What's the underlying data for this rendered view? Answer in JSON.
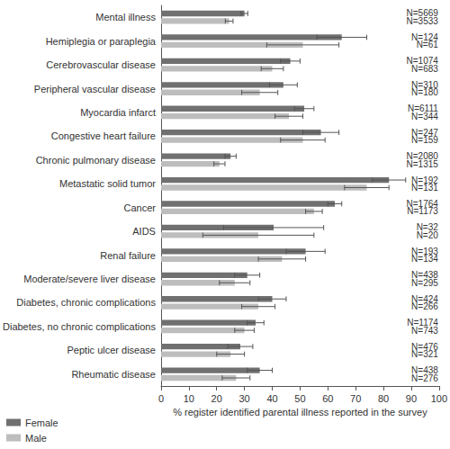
{
  "chart_data": {
    "type": "bar",
    "orientation": "horizontal",
    "xlabel": "% register identified parental illness reported in the survey",
    "categories": [
      "Mental illness",
      "Hemiplegia or paraplegia",
      "Cerebrovascular disease",
      "Peripheral vascular disease",
      "Myocardia infarct",
      "Congestive heart failure",
      "Chronic pulmonary disease",
      "Metastatic solid tumor",
      "Cancer",
      "AIDS",
      "Renal failure",
      "Moderate/severe liver disease",
      "Diabetes, chronic complications",
      "Diabetes, no chronic complications",
      "Peptic ulcer disease",
      "Rheumatic disease"
    ],
    "series": [
      {
        "name": "Female",
        "color": "#707070",
        "values": [
          30,
          65,
          46.5,
          44,
          51.5,
          57.5,
          25,
          82,
          62.5,
          40.5,
          52,
          31,
          40,
          34,
          28.5,
          35.5
        ],
        "errors": [
          1.2,
          9,
          3.5,
          5,
          3.5,
          6.5,
          2,
          6,
          2.5,
          18,
          7,
          4.5,
          5,
          3,
          4.5,
          4.5
        ],
        "n_labels": [
          "N=5669",
          "N=124",
          "N=1074",
          "N=310",
          "N=6111",
          "N=247",
          "N=2080",
          "N=192",
          "N=1764",
          "N=32",
          "N=193",
          "N=438",
          "N=424",
          "N=1174",
          "N=476",
          "N=438"
        ]
      },
      {
        "name": "Male",
        "color": "#bdbdbd",
        "values": [
          24.5,
          51,
          40,
          35.5,
          46,
          51,
          21,
          74,
          55,
          35,
          43.5,
          26.5,
          35,
          30,
          25,
          27
        ],
        "errors": [
          1.4,
          13,
          4,
          6.5,
          5,
          8,
          2,
          8,
          3,
          20,
          8.5,
          5.5,
          6,
          3.5,
          5,
          5
        ],
        "n_labels": [
          "N=3533",
          "N=61",
          "N=683",
          "N=180",
          "N=344",
          "N=159",
          "N=1315",
          "N=131",
          "N=1173",
          "N=20",
          "N=134",
          "N=295",
          "N=266",
          "N=743",
          "N=321",
          "N=276"
        ]
      }
    ],
    "xlim": [
      0,
      100
    ],
    "xticks": [
      0,
      10,
      20,
      30,
      40,
      50,
      60,
      70,
      80,
      90,
      100
    ],
    "grid": false,
    "legend": "bottom-left"
  }
}
